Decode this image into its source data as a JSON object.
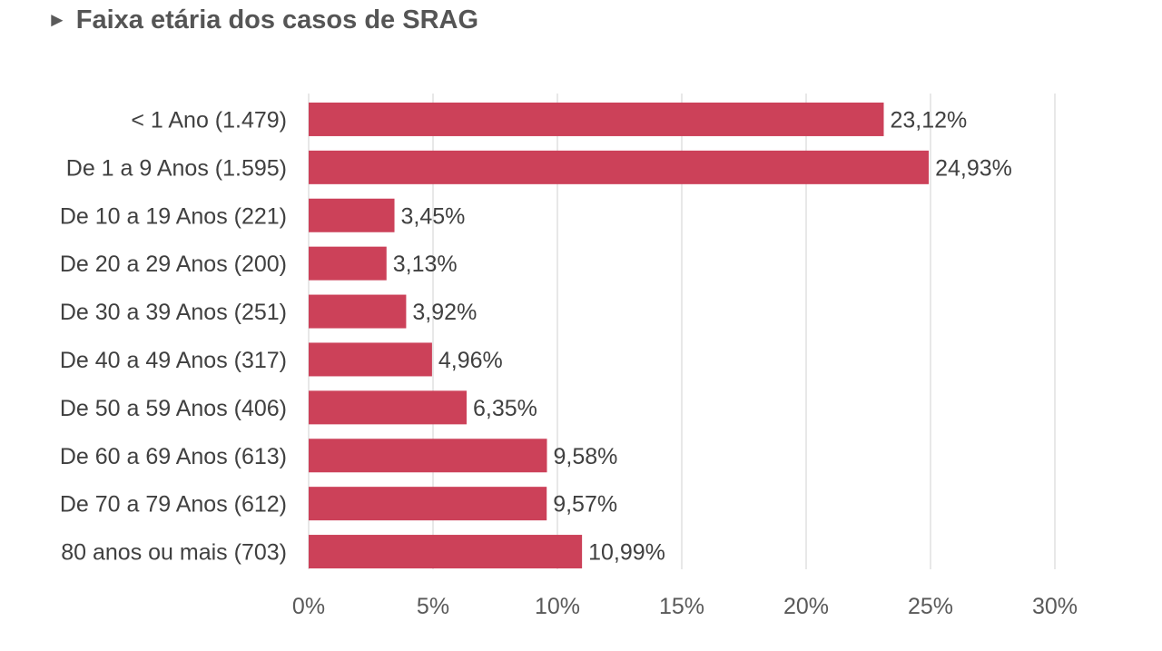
{
  "header": {
    "marker": "►",
    "title": "Faixa etária dos casos de SRAG"
  },
  "chart_data": {
    "type": "bar",
    "orientation": "horizontal",
    "title": "Faixa etária dos casos de SRAG",
    "categories": [
      "< 1 Ano (1.479)",
      "De 1 a 9 Anos (1.595)",
      "De 10 a 19 Anos (221)",
      "De 20 a 29 Anos (200)",
      "De 30 a 39 Anos (251)",
      "De 40 a 49 Anos (317)",
      "De 50 a 59 Anos (406)",
      "De 60 a 69 Anos (613)",
      "De 70 a 79 Anos (612)",
      "80 anos ou mais (703)"
    ],
    "values": [
      23.12,
      24.93,
      3.45,
      3.13,
      3.92,
      4.96,
      6.35,
      9.58,
      9.57,
      10.99
    ],
    "value_labels": [
      "23,12%",
      "24,93%",
      "3,45%",
      "3,13%",
      "3,92%",
      "4,96%",
      "6,35%",
      "9,58%",
      "9,57%",
      "10,99%"
    ],
    "xlim": [
      0,
      30
    ],
    "xticks": [
      0,
      5,
      10,
      15,
      20,
      25,
      30
    ],
    "xtick_labels": [
      "0%",
      "5%",
      "10%",
      "15%",
      "20%",
      "25%",
      "30%"
    ],
    "grid": true,
    "bar_color": "#cc4159",
    "grid_color": "#d9d9d9"
  }
}
